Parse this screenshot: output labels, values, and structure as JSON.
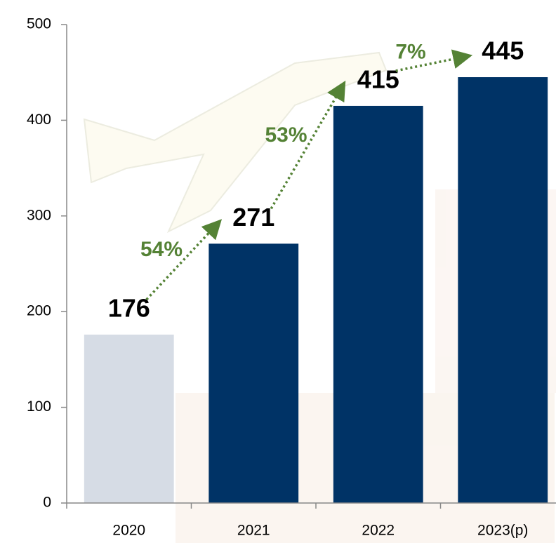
{
  "chart_data": {
    "type": "bar",
    "categories": [
      "2020",
      "2021",
      "2022",
      "2023(p)"
    ],
    "values": [
      176,
      271,
      415,
      445
    ],
    "colors": [
      "#d6dce5",
      "#003366",
      "#003366",
      "#003366"
    ],
    "ylim": [
      0,
      500
    ],
    "yticks": [
      0,
      100,
      200,
      300,
      400,
      500
    ],
    "annotations": [
      "54%",
      "53%",
      "7%"
    ],
    "annotation_color": "#548235"
  }
}
